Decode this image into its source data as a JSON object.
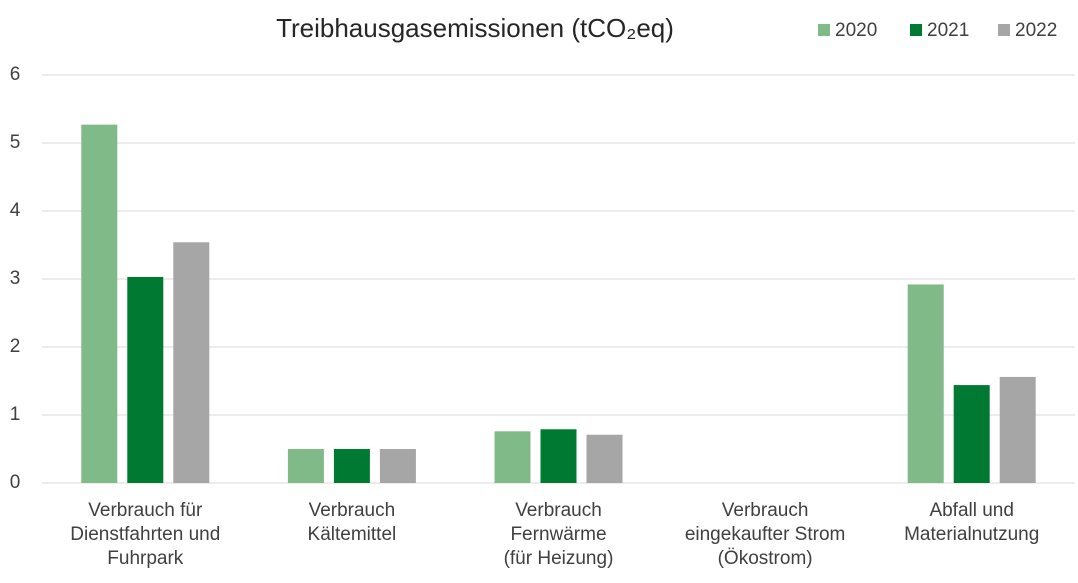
{
  "chart_data": {
    "type": "bar",
    "title": "Treibhausgasemissionen (tCO₂eq)",
    "categories": [
      [
        "Verbrauch für",
        "Dienstfahrten und",
        "Fuhrpark"
      ],
      [
        "Verbrauch",
        "Kältemittel"
      ],
      [
        "Verbrauch",
        "Fernwärme",
        "(für Heizung)"
      ],
      [
        "Verbrauch",
        "eingekaufter Strom",
        "(Ökostrom)"
      ],
      [
        "Abfall und",
        "Materialnutzung"
      ]
    ],
    "series": [
      {
        "name": "2020",
        "color": "#7fba88",
        "values": [
          5.27,
          0.5,
          0.76,
          0,
          2.92
        ]
      },
      {
        "name": "2021",
        "color": "#007a33",
        "values": [
          3.03,
          0.5,
          0.79,
          0,
          1.44
        ]
      },
      {
        "name": "2022",
        "color": "#a6a6a6",
        "values": [
          3.54,
          0.5,
          0.71,
          0,
          1.56
        ]
      }
    ],
    "ylim": [
      0,
      6
    ],
    "yticks": [
      0,
      1,
      2,
      3,
      4,
      5,
      6
    ],
    "grid": true,
    "legend": "top-right"
  }
}
